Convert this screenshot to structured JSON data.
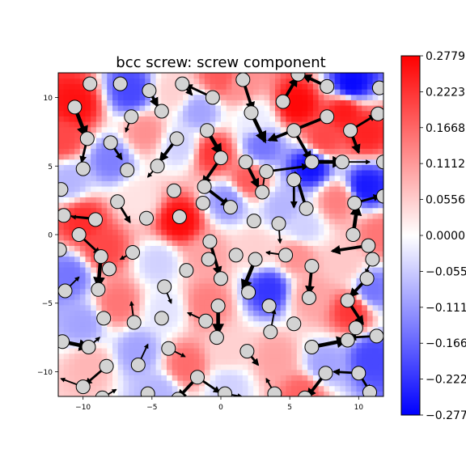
{
  "chart_data": {
    "type": "heatmap",
    "title": "bcc screw: screw component",
    "xlabel": "",
    "ylabel": "",
    "xlim": [
      -11.8,
      11.8
    ],
    "ylim": [
      -11.8,
      11.8
    ],
    "x_ticks": [
      -10,
      -5,
      0,
      5,
      10
    ],
    "y_ticks": [
      -10,
      -5,
      0,
      5,
      10
    ],
    "x_tick_labels": [
      "−10",
      "−5",
      "0",
      "5",
      "10"
    ],
    "y_tick_labels": [
      "−10",
      "−5",
      "0",
      "5",
      "10"
    ],
    "colorbar": {
      "range": [
        -0.2779,
        0.2779
      ],
      "colormap": "bwr",
      "ticks": [
        0.2779,
        0.2223,
        0.1668,
        0.1112,
        0.0556,
        0.0,
        -0.0556,
        -0.1112,
        -0.1668,
        -0.2223,
        -0.2779
      ],
      "tick_labels": [
        "0.2779",
        "0.2223",
        "0.1668",
        "0.1112",
        "0.0556",
        "0.0000",
        "−0.0556",
        "−0.1112",
        "−0.1668",
        "−0.2223",
        "−0.2779"
      ]
    },
    "field_points": [
      {
        "x": -10.5,
        "y": 9.5,
        "v": 0.26
      },
      {
        "x": -6.5,
        "y": 10.5,
        "v": -0.2
      },
      {
        "x": -3.5,
        "y": 10.5,
        "v": 0.05
      },
      {
        "x": 1.5,
        "y": 11.0,
        "v": 0.12
      },
      {
        "x": 5.5,
        "y": 9.5,
        "v": 0.27
      },
      {
        "x": 9.5,
        "y": 11.0,
        "v": -0.27
      },
      {
        "x": 10.5,
        "y": 7.5,
        "v": 0.24
      },
      {
        "x": 6.5,
        "y": 5.0,
        "v": -0.26
      },
      {
        "x": 3.0,
        "y": 6.5,
        "v": -0.15
      },
      {
        "x": -0.5,
        "y": 6.0,
        "v": 0.22
      },
      {
        "x": -3.0,
        "y": 6.5,
        "v": -0.05
      },
      {
        "x": -8.0,
        "y": 5.5,
        "v": -0.14
      },
      {
        "x": -11.0,
        "y": 4.0,
        "v": -0.08
      },
      {
        "x": -10.0,
        "y": 1.0,
        "v": 0.23
      },
      {
        "x": -6.0,
        "y": 2.5,
        "v": 0.03
      },
      {
        "x": -3.0,
        "y": 1.0,
        "v": 0.27
      },
      {
        "x": 0.5,
        "y": 2.5,
        "v": -0.12
      },
      {
        "x": 2.0,
        "y": 4.0,
        "v": 0.18
      },
      {
        "x": 4.5,
        "y": 2.0,
        "v": -0.08
      },
      {
        "x": 8.5,
        "y": 2.5,
        "v": 0.14
      },
      {
        "x": 10.5,
        "y": 3.5,
        "v": -0.25
      },
      {
        "x": 9.0,
        "y": -2.0,
        "v": 0.06
      },
      {
        "x": 5.5,
        "y": -1.5,
        "v": 0.12
      },
      {
        "x": 2.5,
        "y": -1.0,
        "v": 0.05
      },
      {
        "x": -1.0,
        "y": -1.5,
        "v": 0.1
      },
      {
        "x": -4.5,
        "y": -2.0,
        "v": -0.05
      },
      {
        "x": -8.5,
        "y": -1.0,
        "v": 0.2
      },
      {
        "x": -11.0,
        "y": -3.0,
        "v": -0.15
      },
      {
        "x": -10.0,
        "y": -6.5,
        "v": -0.1
      },
      {
        "x": -7.5,
        "y": -5.0,
        "v": 0.15
      },
      {
        "x": -4.0,
        "y": -5.5,
        "v": -0.03
      },
      {
        "x": -1.0,
        "y": -5.0,
        "v": 0.14
      },
      {
        "x": 3.5,
        "y": -4.0,
        "v": -0.22
      },
      {
        "x": 6.5,
        "y": -4.5,
        "v": 0.1
      },
      {
        "x": 9.5,
        "y": -5.5,
        "v": 0.22
      },
      {
        "x": 11.0,
        "y": -4.0,
        "v": -0.15
      },
      {
        "x": 11.0,
        "y": -9.0,
        "v": -0.2
      },
      {
        "x": 7.5,
        "y": -9.5,
        "v": -0.1
      },
      {
        "x": 4.0,
        "y": -9.0,
        "v": 0.1
      },
      {
        "x": 0.5,
        "y": -8.5,
        "v": 0.05
      },
      {
        "x": -2.5,
        "y": -9.5,
        "v": 0.16
      },
      {
        "x": -6.0,
        "y": -8.5,
        "v": -0.1
      },
      {
        "x": -9.5,
        "y": -9.5,
        "v": 0.08
      },
      {
        "x": 6.0,
        "y": -11.5,
        "v": 0.17
      },
      {
        "x": -4.5,
        "y": -11.5,
        "v": -0.08
      },
      {
        "x": 0.0,
        "y": 11.5,
        "v": 0.18
      },
      {
        "x": -11.5,
        "y": 7.0,
        "v": 0.2
      },
      {
        "x": 2.5,
        "y": 8.5,
        "v": -0.02
      },
      {
        "x": 7.5,
        "y": 7.0,
        "v": 0.2
      },
      {
        "x": -1.5,
        "y": 9.0,
        "v": -0.1
      },
      {
        "x": -5.5,
        "y": 7.5,
        "v": 0.12
      },
      {
        "x": 0.5,
        "y": -11.0,
        "v": -0.05
      },
      {
        "x": 9.0,
        "y": 9.0,
        "v": 0.25
      },
      {
        "x": 11.5,
        "y": 0.0,
        "v": 0.15
      },
      {
        "x": 6.0,
        "y": 0.5,
        "v": -0.05
      }
    ],
    "atoms": [
      [
        -9.5,
        11.0
      ],
      [
        -7.3,
        11.0
      ],
      [
        -5.2,
        10.5
      ],
      [
        -2.8,
        11.0
      ],
      [
        -0.6,
        10.0
      ],
      [
        1.6,
        11.3
      ],
      [
        5.6,
        11.7
      ],
      [
        7.7,
        10.8
      ],
      [
        11.5,
        10.7
      ],
      [
        -10.6,
        9.3
      ],
      [
        -6.5,
        8.6
      ],
      [
        -4.3,
        9.0
      ],
      [
        2.2,
        8.9
      ],
      [
        4.5,
        9.7
      ],
      [
        7.7,
        8.6
      ],
      [
        11.4,
        8.8
      ],
      [
        -9.7,
        7.0
      ],
      [
        -8.0,
        6.7
      ],
      [
        -3.2,
        7.0
      ],
      [
        -1.0,
        7.6
      ],
      [
        5.3,
        7.6
      ],
      [
        9.4,
        7.6
      ],
      [
        -10.0,
        4.8
      ],
      [
        -6.8,
        4.7
      ],
      [
        -4.6,
        5.0
      ],
      [
        0.0,
        5.6
      ],
      [
        1.8,
        5.3
      ],
      [
        3.3,
        4.6
      ],
      [
        6.6,
        5.3
      ],
      [
        8.8,
        5.3
      ],
      [
        11.8,
        5.3
      ],
      [
        -11.6,
        3.3
      ],
      [
        -7.5,
        2.4
      ],
      [
        -3.4,
        3.2
      ],
      [
        -1.2,
        3.5
      ],
      [
        3.0,
        3.1
      ],
      [
        5.3,
        4.0
      ],
      [
        -11.4,
        1.4
      ],
      [
        -9.1,
        1.1
      ],
      [
        -5.4,
        1.2
      ],
      [
        -3.0,
        1.3
      ],
      [
        -1.3,
        2.3
      ],
      [
        0.7,
        2.0
      ],
      [
        2.4,
        1.0
      ],
      [
        4.2,
        0.8
      ],
      [
        6.2,
        1.9
      ],
      [
        9.7,
        2.3
      ],
      [
        11.8,
        2.8
      ],
      [
        -10.3,
        0.0
      ],
      [
        -8.7,
        -1.6
      ],
      [
        -6.4,
        -1.3
      ],
      [
        -0.8,
        -0.5
      ],
      [
        1.1,
        -1.5
      ],
      [
        4.7,
        -1.5
      ],
      [
        9.6,
        0.0
      ],
      [
        10.7,
        -0.8
      ],
      [
        -11.7,
        -1.1
      ],
      [
        -8.1,
        -2.5
      ],
      [
        -2.5,
        -2.6
      ],
      [
        -0.9,
        -1.8
      ],
      [
        0.0,
        -3.2
      ],
      [
        2.5,
        -1.8
      ],
      [
        6.6,
        -2.3
      ],
      [
        11.0,
        -1.8
      ],
      [
        -11.3,
        -4.1
      ],
      [
        -8.9,
        -4.0
      ],
      [
        -4.1,
        -3.8
      ],
      [
        2.0,
        -4.2
      ],
      [
        3.5,
        -5.2
      ],
      [
        6.4,
        -4.6
      ],
      [
        9.2,
        -4.8
      ],
      [
        10.6,
        -3.2
      ],
      [
        -8.5,
        -6.1
      ],
      [
        -6.3,
        -6.4
      ],
      [
        -4.3,
        -6.1
      ],
      [
        -1.1,
        -6.3
      ],
      [
        -0.2,
        -5.2
      ],
      [
        3.6,
        -7.1
      ],
      [
        5.3,
        -6.5
      ],
      [
        9.8,
        -6.8
      ],
      [
        -11.5,
        -7.8
      ],
      [
        -9.6,
        -8.2
      ],
      [
        -3.8,
        -8.3
      ],
      [
        -0.3,
        -7.5
      ],
      [
        1.9,
        -8.5
      ],
      [
        6.6,
        -8.2
      ],
      [
        9.2,
        -7.7
      ],
      [
        11.3,
        -7.4
      ],
      [
        -8.3,
        -9.6
      ],
      [
        -6.0,
        -9.5
      ],
      [
        -1.7,
        -10.4
      ],
      [
        7.6,
        -10.1
      ],
      [
        10.0,
        -10.1
      ],
      [
        -10.0,
        -11.1
      ],
      [
        -8.6,
        -11.9
      ],
      [
        -5.3,
        -11.6
      ],
      [
        -3.1,
        -12.0
      ],
      [
        0.3,
        -11.6
      ],
      [
        3.9,
        -11.6
      ],
      [
        6.1,
        -11.9
      ],
      [
        10.8,
        -11.5
      ]
    ],
    "arrows": [
      [
        -10.6,
        9.3,
        -9.8,
        7.2,
        4
      ],
      [
        -9.7,
        7.0,
        -10.1,
        5.3,
        2
      ],
      [
        -8.0,
        6.7,
        -7.2,
        5.5,
        2
      ],
      [
        -6.5,
        8.6,
        -6.9,
        7.5,
        1
      ],
      [
        -5.2,
        10.5,
        -4.6,
        9.4,
        3
      ],
      [
        -3.2,
        7.0,
        -4.4,
        5.4,
        3
      ],
      [
        -2.8,
        11.0,
        -2.1,
        10.2,
        2
      ],
      [
        -1.0,
        7.6,
        0.0,
        5.9,
        4
      ],
      [
        0.0,
        5.6,
        -1.3,
        3.7,
        3
      ],
      [
        1.8,
        5.3,
        2.7,
        3.5,
        3
      ],
      [
        3.3,
        4.6,
        6.3,
        5.0,
        2
      ],
      [
        6.6,
        5.3,
        8.8,
        5.3,
        4
      ],
      [
        5.3,
        7.6,
        6.5,
        5.5,
        3
      ],
      [
        9.4,
        7.6,
        11.2,
        8.7,
        2
      ],
      [
        9.4,
        7.6,
        10.0,
        6.0,
        3
      ],
      [
        2.2,
        8.9,
        3.2,
        6.8,
        4
      ],
      [
        4.5,
        9.7,
        5.5,
        11.4,
        3
      ],
      [
        7.7,
        10.8,
        6.0,
        11.6,
        3
      ],
      [
        7.7,
        8.6,
        3.5,
        6.9,
        3
      ],
      [
        1.6,
        11.3,
        2.3,
        9.1,
        3
      ],
      [
        -0.6,
        10.0,
        -2.5,
        10.9,
        2
      ],
      [
        -7.5,
        2.4,
        -6.6,
        0.9,
        2
      ],
      [
        -1.2,
        3.5,
        0.6,
        2.1,
        3
      ],
      [
        3.0,
        3.1,
        3.2,
        4.5,
        1
      ],
      [
        5.3,
        4.0,
        5.3,
        2.0,
        2
      ],
      [
        -11.4,
        1.4,
        -9.2,
        1.2,
        1
      ],
      [
        -9.1,
        1.1,
        -10.8,
        1.3,
        1
      ],
      [
        9.7,
        2.3,
        11.5,
        2.8,
        2
      ],
      [
        9.6,
        0.0,
        9.9,
        2.1,
        4
      ],
      [
        10.7,
        -0.8,
        8.1,
        -1.2,
        3
      ],
      [
        -10.3,
        0.0,
        -8.8,
        -1.4,
        2
      ],
      [
        -8.7,
        -1.6,
        -8.9,
        -3.8,
        4
      ],
      [
        -6.4,
        -1.3,
        -7.3,
        -1.8,
        1
      ],
      [
        -0.8,
        -0.5,
        -0.1,
        -2.9,
        3
      ],
      [
        2.5,
        -1.8,
        1.6,
        -4.0,
        4
      ],
      [
        4.7,
        -1.5,
        3.3,
        -1.3,
        1
      ],
      [
        6.6,
        -2.3,
        6.4,
        -4.3,
        3
      ],
      [
        10.6,
        -3.2,
        9.4,
        -4.5,
        3
      ],
      [
        9.2,
        -4.8,
        10.3,
        -6.5,
        3
      ],
      [
        11.0,
        -1.8,
        10.5,
        -2.8,
        1
      ],
      [
        -4.1,
        -3.8,
        -3.6,
        -5.0,
        1
      ],
      [
        -11.3,
        -4.1,
        -10.3,
        -3.1,
        1
      ],
      [
        -0.2,
        -5.2,
        -0.2,
        -7.2,
        4
      ],
      [
        -1.1,
        -6.3,
        -2.4,
        -5.7,
        1
      ],
      [
        -6.3,
        -6.4,
        -6.5,
        -4.9,
        1
      ],
      [
        3.6,
        -7.1,
        3.9,
        -5.5,
        1
      ],
      [
        6.6,
        -8.2,
        9.1,
        -7.7,
        4
      ],
      [
        9.8,
        -6.8,
        9.4,
        -7.6,
        1
      ],
      [
        11.3,
        -7.4,
        9.4,
        -7.5,
        2
      ],
      [
        -11.5,
        -7.8,
        -9.6,
        -8.2,
        4
      ],
      [
        -9.6,
        -8.2,
        -8.8,
        -7.5,
        1
      ],
      [
        -3.8,
        -8.3,
        -2.6,
        -8.9,
        1
      ],
      [
        1.9,
        -8.5,
        2.7,
        -9.5,
        2
      ],
      [
        -1.7,
        -10.4,
        -0.1,
        -11.5,
        2
      ],
      [
        -1.7,
        -10.4,
        -3.1,
        -11.9,
        3
      ],
      [
        7.6,
        -10.1,
        6.3,
        -11.8,
        3
      ],
      [
        10.0,
        -10.1,
        8.2,
        -10.0,
        2
      ],
      [
        10.0,
        -10.1,
        10.8,
        -11.4,
        2
      ],
      [
        -8.3,
        -9.6,
        -9.8,
        -10.9,
        2
      ],
      [
        -6.0,
        -9.5,
        -5.3,
        -8.0,
        1
      ],
      [
        -10.0,
        -11.1,
        -11.6,
        -10.5,
        1
      ],
      [
        -8.6,
        -11.9,
        -7.6,
        -11.3,
        1
      ],
      [
        3.9,
        -11.6,
        3.3,
        -10.5,
        1
      ],
      [
        0.3,
        -11.6,
        1.5,
        -11.8,
        1
      ],
      [
        -4.6,
        5.0,
        -5.3,
        4.2,
        1
      ],
      [
        8.8,
        5.3,
        10.8,
        5.3,
        1
      ],
      [
        6.2,
        1.9,
        5.4,
        4.5,
        3
      ],
      [
        4.2,
        0.8,
        4.3,
        -0.6,
        1
      ]
    ]
  }
}
